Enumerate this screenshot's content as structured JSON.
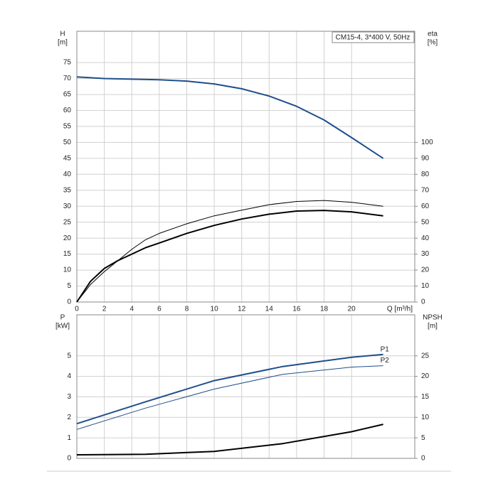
{
  "chart_data": [
    {
      "type": "line",
      "annotation": "CM15-4, 3*400 V, 50Hz",
      "y_label": "H",
      "y_unit": "[m]",
      "y2_label": "eta",
      "y2_unit": "[%]",
      "x_label": "Q [m³/h]",
      "xlim": [
        0,
        24.6
      ],
      "xticks": [
        0,
        2,
        4,
        6,
        8,
        10,
        12,
        14,
        16,
        18,
        20
      ],
      "ylim": [
        0,
        84.8
      ],
      "yticks": [
        0,
        5,
        10,
        15,
        20,
        25,
        30,
        35,
        40,
        45,
        50,
        55,
        60,
        65,
        70,
        75
      ],
      "y2lim": [
        0,
        169.6
      ],
      "y2ticks": [
        0,
        10,
        20,
        30,
        40,
        50,
        60,
        70,
        80,
        90,
        100
      ],
      "grid": true,
      "series": [
        {
          "color": "#1f4e8c",
          "line_width": 2,
          "x": [
            0,
            2,
            4,
            6,
            8,
            10,
            12,
            14,
            16,
            18,
            20,
            22.3
          ],
          "values": [
            70.5,
            70,
            69.8,
            69.6,
            69.2,
            68.3,
            66.8,
            64.5,
            61.3,
            57,
            51.5,
            45
          ]
        },
        {
          "color": "#000000",
          "line_width": 1,
          "axis": "y2",
          "x": [
            0,
            1,
            2,
            3,
            4,
            5,
            6,
            8,
            10,
            12,
            14,
            16,
            18,
            20,
            22.3
          ],
          "values": [
            0,
            11,
            19,
            26,
            33,
            39,
            43,
            49,
            54,
            57.5,
            61,
            63,
            63.6,
            62.5,
            60
          ]
        },
        {
          "color": "#000000",
          "line_width": 2,
          "axis": "y2",
          "x": [
            0,
            1,
            2,
            3,
            4,
            5,
            6,
            8,
            10,
            12,
            14,
            16,
            18,
            20,
            22.3
          ],
          "values": [
            0,
            13,
            21,
            26,
            30,
            34,
            37,
            43,
            48,
            52,
            55,
            57,
            57.4,
            56.5,
            54
          ]
        }
      ]
    },
    {
      "type": "line",
      "y_label": "P",
      "y_unit": "[kW]",
      "y2_label": "NPSH",
      "y2_unit": "[m]",
      "xlim": [
        0,
        24.6
      ],
      "ylim": [
        0,
        7
      ],
      "yticks": [
        0,
        1,
        2,
        3,
        4,
        5
      ],
      "y2lim": [
        0,
        35
      ],
      "y2ticks": [
        0,
        5,
        10,
        15,
        20,
        25
      ],
      "grid": true,
      "series": [
        {
          "name": "P1",
          "color": "#1f4e8c",
          "line_width": 2,
          "x": [
            0,
            5,
            10,
            15,
            20,
            22.3
          ],
          "values": [
            1.69,
            2.76,
            3.79,
            4.48,
            4.93,
            5.07
          ]
        },
        {
          "name": "P2",
          "color": "#1f4e8c",
          "line_width": 1,
          "x": [
            0,
            5,
            10,
            15,
            20,
            22.3
          ],
          "values": [
            1.41,
            2.45,
            3.38,
            4.1,
            4.45,
            4.52
          ]
        },
        {
          "color": "#000000",
          "line_width": 2,
          "axis": "y2",
          "x": [
            0,
            5,
            10,
            15,
            20,
            22.3
          ],
          "values": [
            0.86,
            1.0,
            1.7,
            3.6,
            6.5,
            8.3
          ]
        }
      ]
    }
  ]
}
